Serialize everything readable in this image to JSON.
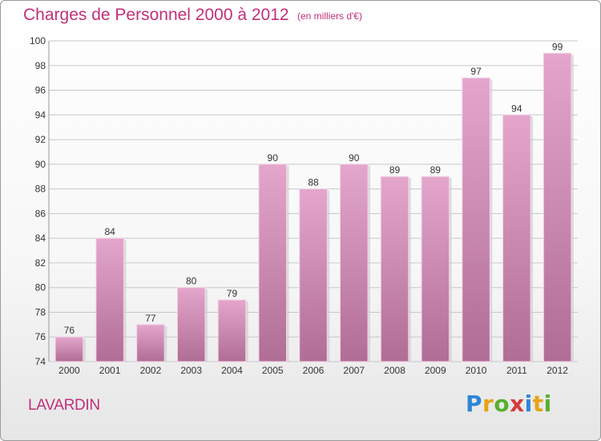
{
  "title": "Charges de Personnel 2000 à 2012",
  "unit": "(en milliers d'€)",
  "city": "LAVARDIN",
  "logo": {
    "letters": [
      "P",
      "r",
      "o",
      "x",
      "i",
      "t",
      "i"
    ],
    "colors": [
      "#2f86d6",
      "#e8a317",
      "#58b030",
      "#d83a3a",
      "#2f86d6",
      "#e8a317",
      "#58b030"
    ]
  },
  "colors": {
    "title": "#c0307a",
    "bar_top": "#e4a6cc",
    "bar_bottom": "#b06d96",
    "grid": "#c8c8c8"
  },
  "chart_data": {
    "type": "bar",
    "categories": [
      "2000",
      "2001",
      "2002",
      "2003",
      "2004",
      "2005",
      "2006",
      "2007",
      "2008",
      "2009",
      "2010",
      "2011",
      "2012"
    ],
    "values": [
      76,
      84,
      77,
      80,
      79,
      90,
      88,
      90,
      89,
      89,
      97,
      94,
      99
    ],
    "ylim": [
      74,
      100
    ],
    "yticks": [
      74,
      76,
      78,
      80,
      82,
      84,
      86,
      88,
      90,
      92,
      94,
      96,
      98,
      100
    ],
    "grid": true,
    "data_labels": true
  }
}
